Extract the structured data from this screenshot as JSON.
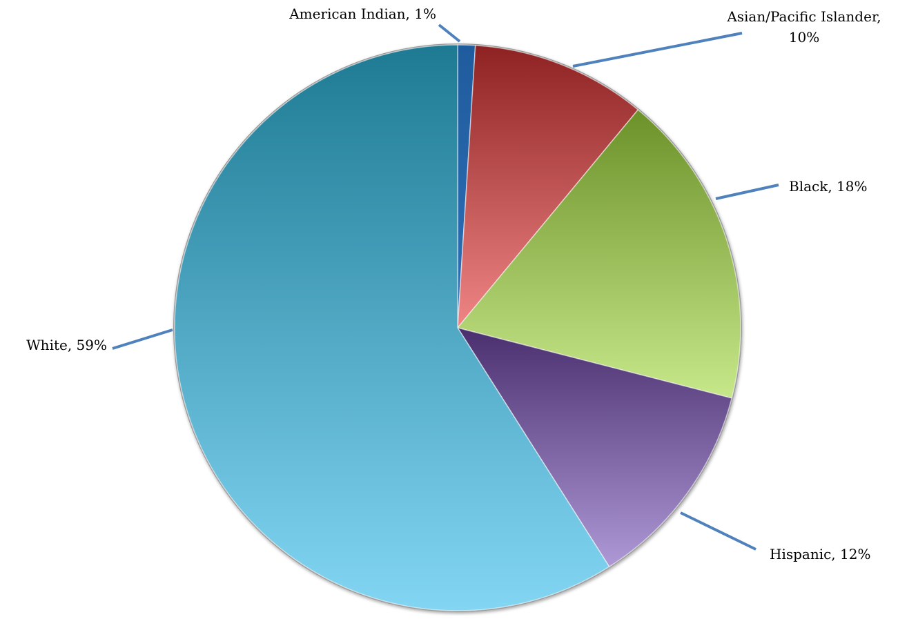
{
  "chart_data": {
    "type": "pie",
    "title": "",
    "start_angle_deg": 0,
    "direction": "clockwise",
    "slices": [
      {
        "name": "American Indian",
        "value": 1,
        "label": "American Indian, 1%",
        "color": "#1F5C9E",
        "color_light": "#2E6FB5"
      },
      {
        "name": "Asian/Pacific Islander",
        "value": 10,
        "label_lines": [
          "Asian/Pacific Islander,",
          "10%"
        ],
        "color": "#8E2222",
        "color_light": "#EF8585"
      },
      {
        "name": "Black",
        "value": 18,
        "label": "Black, 18%",
        "color": "#6C9129",
        "color_light": "#C7E88A"
      },
      {
        "name": "Hispanic",
        "value": 12,
        "label": "Hispanic, 12%",
        "color": "#4A2F6E",
        "color_light": "#AE98D6"
      },
      {
        "name": "White",
        "value": 59,
        "label": "White, 59%",
        "color": "#1E7A93",
        "color_light": "#82D6F4"
      }
    ],
    "leader_line_color": "#4F81BD",
    "legend": "none"
  }
}
